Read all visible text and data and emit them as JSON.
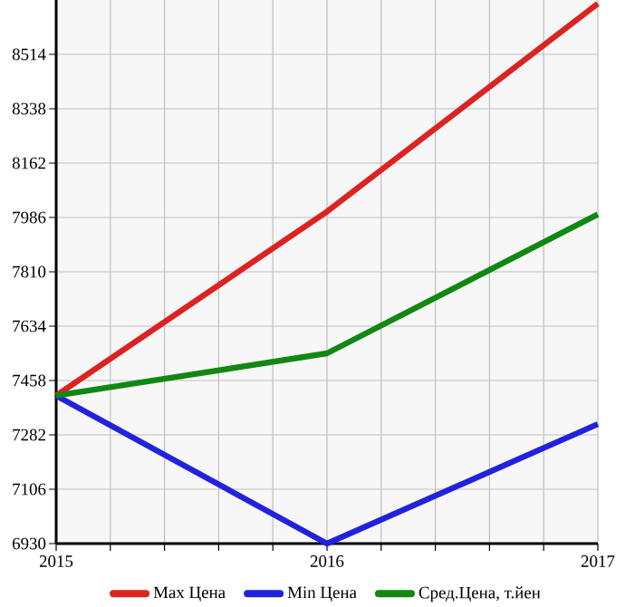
{
  "chart_data": {
    "type": "line",
    "x": [
      2015,
      2016,
      2017
    ],
    "series": [
      {
        "name": "Max Цена",
        "color": "#dd2222",
        "values": [
          7409,
          8005,
          8678
        ]
      },
      {
        "name": "Min Цена",
        "color": "#2222dd",
        "values": [
          7409,
          6930,
          7317
        ]
      },
      {
        "name": "Сред.Цена, т.йен",
        "color": "#118811",
        "values": [
          7409,
          7546,
          7996
        ]
      }
    ],
    "xlim": [
      2015,
      2017
    ],
    "xticks": [
      2015,
      {
        "value": 2015.2,
        "label": null
      },
      {
        "value": 2015.4,
        "label": null
      },
      {
        "value": 2015.6,
        "label": null
      },
      {
        "value": 2015.8,
        "label": null
      },
      2016,
      {
        "value": 2016.2,
        "label": null
      },
      {
        "value": 2016.4,
        "label": null
      },
      {
        "value": 2016.6,
        "label": null
      },
      {
        "value": 2016.8,
        "label": null
      },
      2017
    ],
    "ylim": [
      6930,
      8690
    ],
    "yticks": [
      6930,
      7106,
      7282,
      7458,
      7634,
      7810,
      7986,
      8162,
      8338,
      8514
    ],
    "grid": true,
    "legend": "bottom",
    "marker": "none",
    "line_style": "solid"
  }
}
